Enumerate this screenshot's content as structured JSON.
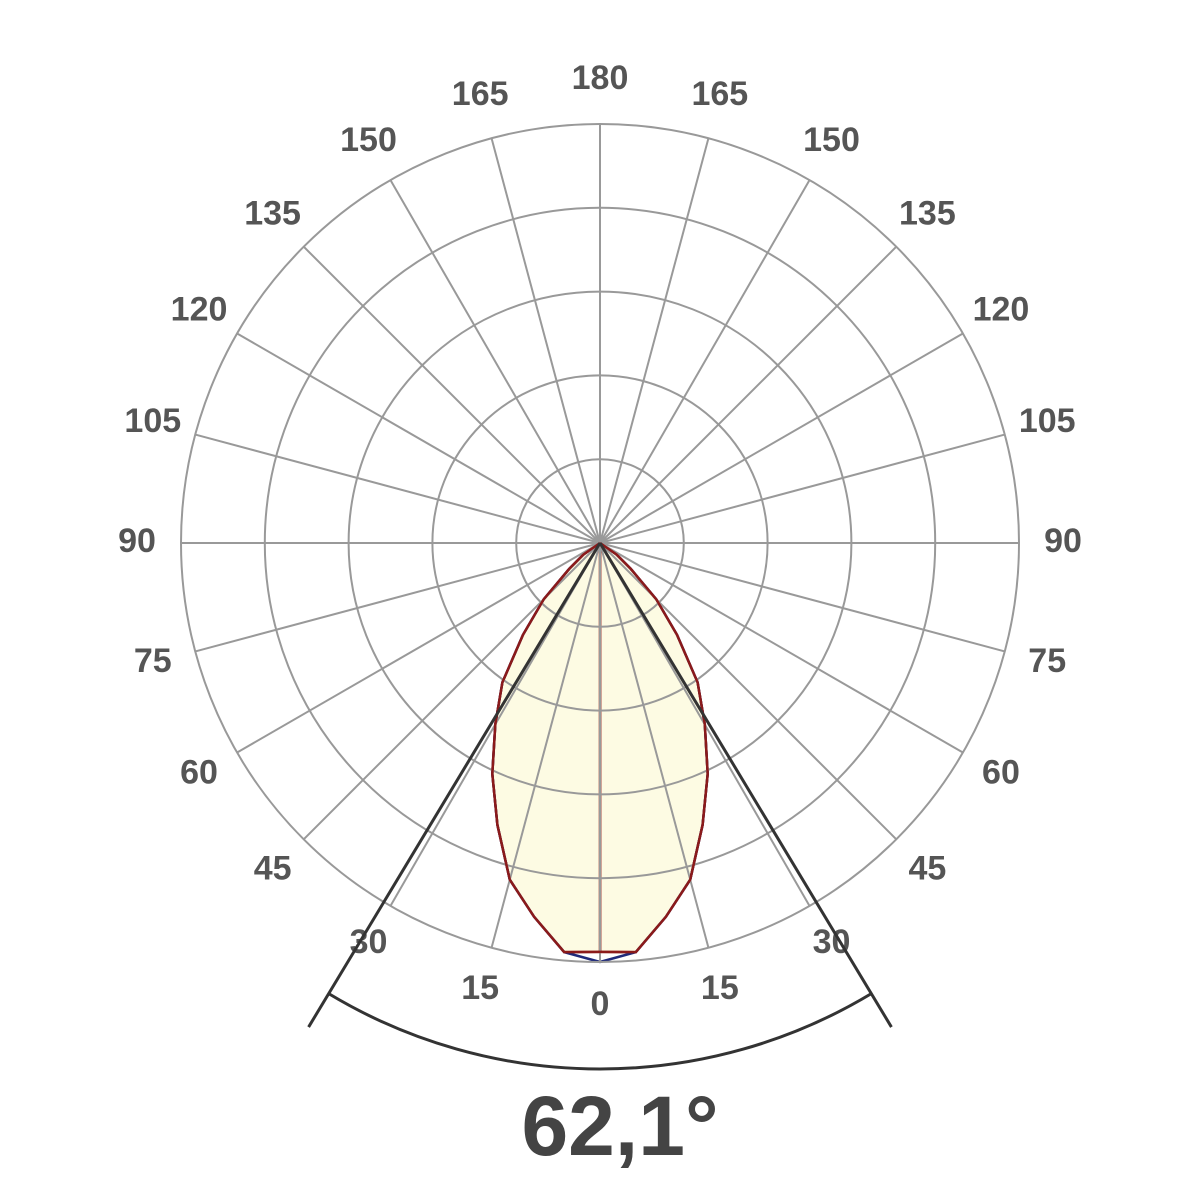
{
  "chart_data": {
    "type": "polar",
    "x": [
      0,
      5,
      10,
      15,
      20,
      25,
      30,
      35,
      40,
      45,
      50,
      55,
      60,
      65,
      70,
      75,
      80,
      85,
      90
    ],
    "series": [
      {
        "color": "#1f2a7a",
        "values": [
          5.0,
          4.9,
          4.53,
          4.16,
          3.58,
          3.04,
          2.5,
          2.03,
          1.43,
          0.95,
          0.48,
          0.24,
          0,
          0,
          0,
          0,
          0,
          0,
          0
        ]
      },
      {
        "color": "#8b1a1a",
        "values": [
          4.88,
          4.9,
          4.53,
          4.16,
          3.58,
          3.04,
          2.5,
          2.03,
          1.43,
          0.95,
          0.48,
          0.24,
          0,
          0,
          0,
          0,
          0,
          0,
          0
        ]
      }
    ],
    "fill": "#fdfbe3",
    "rlim": [
      0,
      5
    ],
    "rticks": [
      1,
      2,
      3,
      4,
      5
    ],
    "thetaticks": [
      0,
      15,
      30,
      45,
      60,
      75,
      90,
      105,
      120,
      135,
      150,
      165,
      180
    ],
    "beam_angle": 62.1,
    "beam_angle_label": "62,1°"
  }
}
